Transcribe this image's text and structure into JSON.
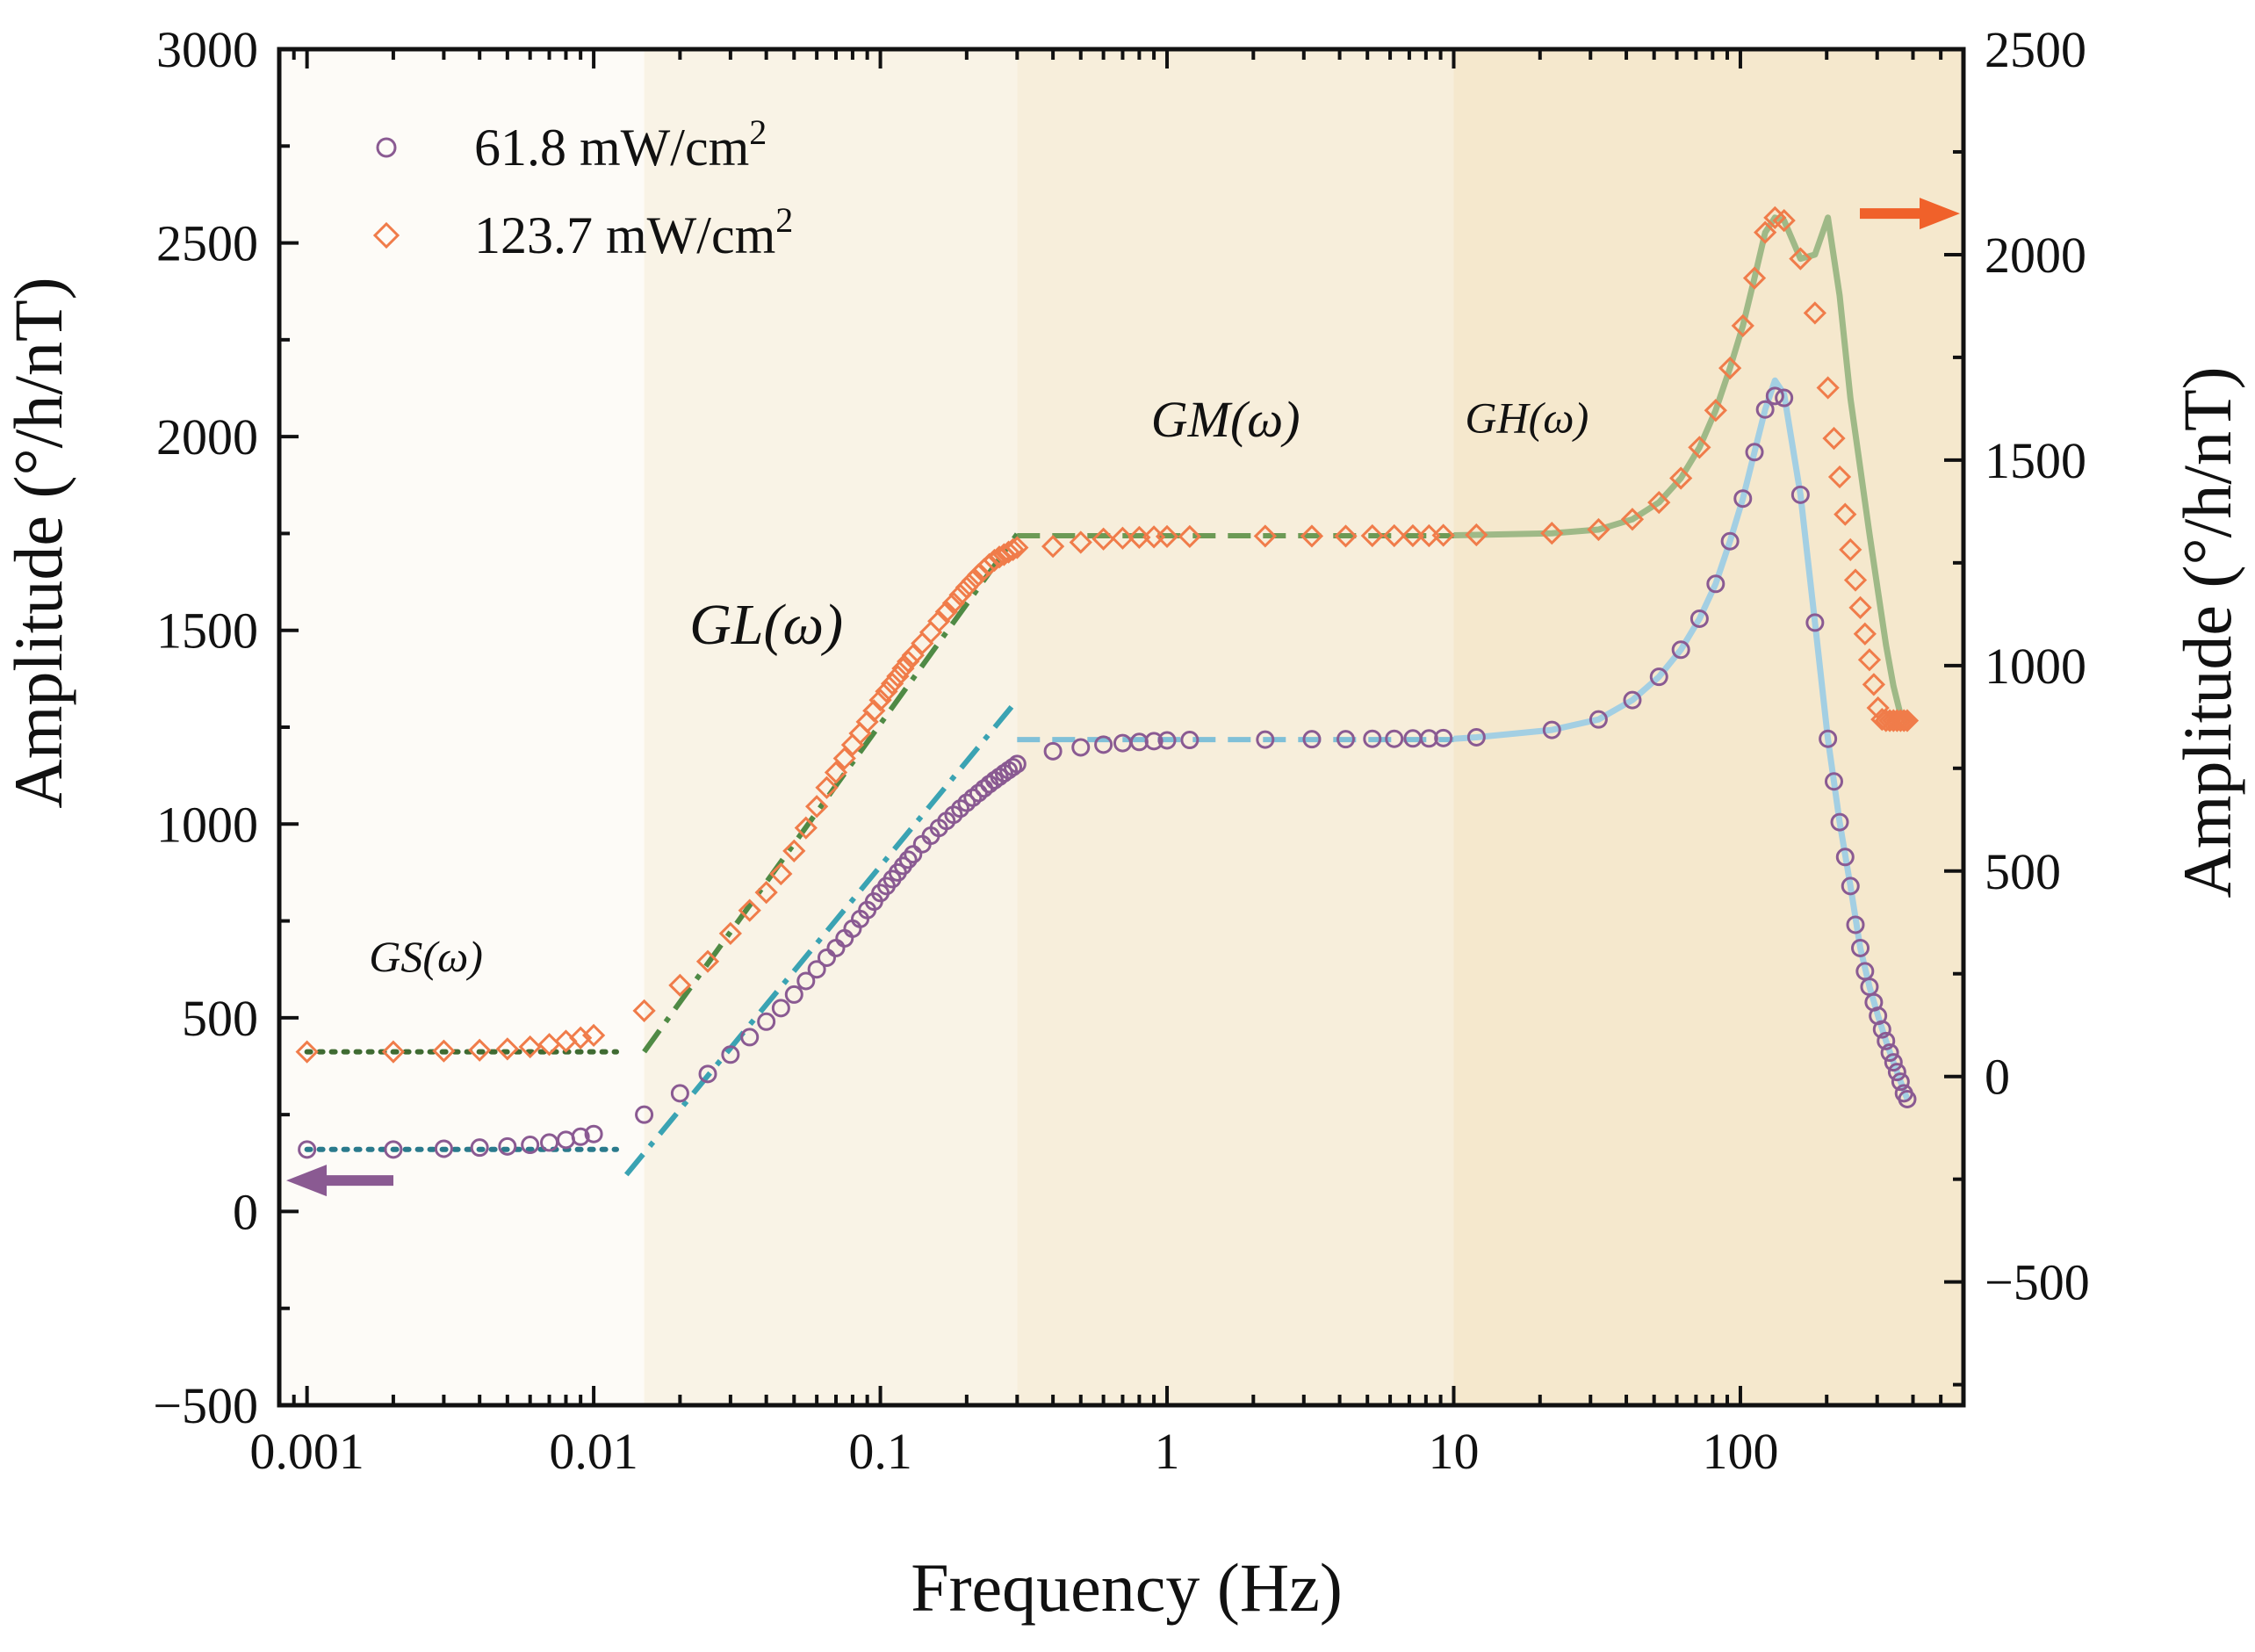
{
  "chart_data": {
    "type": "scatter",
    "title": "",
    "xlabel": "Frequency (Hz)",
    "ylabel_left": "Amplitude (°/h/nT)",
    "ylabel_right": "Amplitude (°/h/nT)",
    "xscale": "log",
    "xlim": [
      0.0008,
      600
    ],
    "ylim_left": [
      -500,
      3000
    ],
    "ylim_right": [
      -800,
      2500
    ],
    "x_ticks": [
      {
        "value": 0.001,
        "label": "0.001"
      },
      {
        "value": 0.01,
        "label": "0.01"
      },
      {
        "value": 0.1,
        "label": "0.1"
      },
      {
        "value": 1,
        "label": "1"
      },
      {
        "value": 10,
        "label": "10"
      },
      {
        "value": 100,
        "label": "100"
      }
    ],
    "y_ticks_left": [
      {
        "value": -500,
        "label": "−500"
      },
      {
        "value": 0,
        "label": "0"
      },
      {
        "value": 500,
        "label": "500"
      },
      {
        "value": 1000,
        "label": "1000"
      },
      {
        "value": 1500,
        "label": "1500"
      },
      {
        "value": 2000,
        "label": "2000"
      },
      {
        "value": 2500,
        "label": "2500"
      },
      {
        "value": 3000,
        "label": "3000"
      }
    ],
    "y_ticks_right": [
      {
        "value": -500,
        "label": "−500"
      },
      {
        "value": 0,
        "label": "0"
      },
      {
        "value": 500,
        "label": "500"
      },
      {
        "value": 1000,
        "label": "1000"
      },
      {
        "value": 1500,
        "label": "1500"
      },
      {
        "value": 2000,
        "label": "2000"
      },
      {
        "value": 2500,
        "label": "2500"
      }
    ],
    "regions": [
      {
        "name": "GS",
        "label": "GS(ω)",
        "x_from": 0.0008,
        "x_to": 0.015,
        "color": "#fdfbf7"
      },
      {
        "name": "GL",
        "label": "GL(ω)",
        "x_from": 0.015,
        "x_to": 0.3,
        "color": "#f9f3e6"
      },
      {
        "name": "GM",
        "label": "GM(ω)",
        "x_from": 0.3,
        "x_to": 10,
        "color": "#f7eedb"
      },
      {
        "name": "GH",
        "label": "GH(ω)",
        "x_from": 10,
        "x_to": 600,
        "color": "#f5e8cd"
      }
    ],
    "legend": {
      "placement": "top-left",
      "entries": [
        {
          "series": "p61",
          "marker": "circle",
          "label": "61.8 mW/cm",
          "sup": "2"
        },
        {
          "series": "p123",
          "marker": "diamond",
          "label": "123.7 mW/cm",
          "sup": "2"
        }
      ]
    },
    "series": [
      {
        "name": "61.8 mW/cm2",
        "id": "p61",
        "axis": "left",
        "marker": "circle",
        "color": "#8a5a92",
        "x": [
          0.001,
          0.002,
          0.003,
          0.004,
          0.005,
          0.006,
          0.007,
          0.008,
          0.009,
          0.01,
          0.015,
          0.02,
          0.025,
          0.03,
          0.035,
          0.04,
          0.045,
          0.05,
          0.055,
          0.06,
          0.065,
          0.07,
          0.075,
          0.08,
          0.085,
          0.09,
          0.095,
          0.1,
          0.105,
          0.11,
          0.115,
          0.12,
          0.125,
          0.13,
          0.14,
          0.15,
          0.16,
          0.17,
          0.18,
          0.19,
          0.2,
          0.21,
          0.22,
          0.23,
          0.24,
          0.25,
          0.26,
          0.27,
          0.28,
          0.29,
          0.3,
          0.4,
          0.5,
          0.6,
          0.7,
          0.8,
          0.9,
          1,
          1.2,
          2.2,
          3.2,
          4.2,
          5.2,
          6.2,
          7.2,
          8.2,
          9.2,
          12,
          22,
          32,
          42,
          52,
          62,
          72,
          82,
          92,
          102,
          112,
          122,
          132,
          142,
          162,
          182,
          202,
          212,
          222,
          232,
          242,
          252,
          262,
          272,
          282,
          292,
          302,
          312,
          322,
          332,
          342,
          352,
          362,
          372,
          382
        ],
        "values": [
          160,
          160,
          162,
          165,
          168,
          172,
          178,
          185,
          193,
          200,
          250,
          305,
          355,
          405,
          450,
          490,
          525,
          560,
          595,
          625,
          655,
          680,
          705,
          730,
          755,
          778,
          800,
          822,
          840,
          858,
          875,
          892,
          908,
          922,
          948,
          970,
          990,
          1008,
          1024,
          1040,
          1055,
          1068,
          1080,
          1092,
          1103,
          1113,
          1122,
          1131,
          1139,
          1147,
          1155,
          1188,
          1198,
          1205,
          1209,
          1212,
          1214,
          1216,
          1217,
          1218,
          1219,
          1219,
          1220,
          1220,
          1221,
          1221,
          1222,
          1224,
          1243,
          1270,
          1320,
          1380,
          1450,
          1530,
          1620,
          1730,
          1840,
          1960,
          2070,
          2105,
          2100,
          1850,
          1520,
          1220,
          1110,
          1005,
          915,
          840,
          740,
          680,
          620,
          580,
          540,
          505,
          470,
          440,
          410,
          385,
          360,
          335,
          305,
          290
        ]
      },
      {
        "name": "123.7 mW/cm2",
        "id": "p123",
        "axis": "right",
        "marker": "diamond",
        "color": "#f07c4a",
        "x": [
          0.001,
          0.002,
          0.003,
          0.004,
          0.005,
          0.006,
          0.007,
          0.008,
          0.009,
          0.01,
          0.015,
          0.02,
          0.025,
          0.03,
          0.035,
          0.04,
          0.045,
          0.05,
          0.055,
          0.06,
          0.065,
          0.07,
          0.075,
          0.08,
          0.085,
          0.09,
          0.095,
          0.1,
          0.105,
          0.11,
          0.115,
          0.12,
          0.125,
          0.13,
          0.14,
          0.15,
          0.16,
          0.17,
          0.18,
          0.19,
          0.2,
          0.21,
          0.22,
          0.23,
          0.24,
          0.25,
          0.26,
          0.27,
          0.28,
          0.29,
          0.3,
          0.4,
          0.5,
          0.6,
          0.7,
          0.8,
          0.9,
          1,
          1.2,
          2.2,
          3.2,
          4.2,
          5.2,
          6.2,
          7.2,
          8.2,
          9.2,
          12,
          22,
          32,
          42,
          52,
          62,
          72,
          82,
          92,
          102,
          112,
          122,
          132,
          142,
          162,
          182,
          202,
          212,
          222,
          232,
          242,
          252,
          262,
          272,
          282,
          292,
          302,
          312,
          322,
          332,
          342,
          352,
          362,
          372,
          382
        ],
        "values": [
          60,
          60,
          62,
          64,
          67,
          72,
          78,
          86,
          94,
          100,
          160,
          222,
          280,
          348,
          404,
          448,
          493,
          549,
          605,
          657,
          703,
          740,
          774,
          807,
          835,
          863,
          890,
          916,
          937,
          956,
          974,
          993,
          1010,
          1025,
          1054,
          1081,
          1108,
          1131,
          1152,
          1172,
          1190,
          1206,
          1221,
          1234,
          1246,
          1256,
          1264,
          1270,
          1276,
          1282,
          1287,
          1290,
          1300,
          1308,
          1310,
          1312,
          1313,
          1314,
          1314,
          1315,
          1315,
          1315,
          1316,
          1316,
          1316,
          1316,
          1317,
          1318,
          1322,
          1331,
          1356,
          1397,
          1456,
          1531,
          1621,
          1724,
          1827,
          1943,
          2054,
          2090,
          2083,
          1990,
          1858,
          1676,
          1553,
          1459,
          1368,
          1282,
          1208,
          1141,
          1077,
          1014,
          954,
          897,
          869,
          866,
          866,
          866,
          866,
          866,
          866,
          866
        ]
      }
    ],
    "fits": [
      {
        "series": "p61",
        "segment": "GS",
        "style": "dotted",
        "color": "#2a7a8c",
        "x": [
          0.001,
          0.012
        ],
        "values": [
          160,
          160
        ]
      },
      {
        "series": "p61",
        "segment": "GL",
        "style": "dashdot",
        "color": "#3aa3b3",
        "x": [
          0.013,
          0.3
        ],
        "values": [
          95,
          1320
        ]
      },
      {
        "series": "p61",
        "segment": "GM",
        "style": "dashed",
        "color": "#80c0d8",
        "x": [
          0.3,
          10
        ],
        "values": [
          1218,
          1218
        ]
      },
      {
        "series": "p61",
        "segment": "GH",
        "style": "solid",
        "color": "#a3cfe3",
        "x": [
          10,
          12,
          22,
          32,
          42,
          52,
          62,
          72,
          82,
          92,
          102,
          112,
          122,
          132,
          142,
          162,
          182,
          202,
          222,
          242,
          262,
          282,
          302,
          322,
          342,
          362,
          382
        ],
        "values": [
          1220,
          1224,
          1243,
          1270,
          1320,
          1380,
          1450,
          1530,
          1620,
          1730,
          1840,
          1960,
          2070,
          2145,
          2110,
          1850,
          1520,
          1220,
          1005,
          840,
          680,
          580,
          505,
          440,
          385,
          335,
          290
        ]
      },
      {
        "series": "p123",
        "segment": "GS",
        "style": "dotted",
        "color": "#3f6b32",
        "x": [
          0.001,
          0.012
        ],
        "values": [
          60,
          60
        ]
      },
      {
        "series": "p123",
        "segment": "GL",
        "style": "dashdot",
        "color": "#4f8a45",
        "x": [
          0.015,
          0.3
        ],
        "values": [
          60,
          1320
        ]
      },
      {
        "series": "p123",
        "segment": "GM",
        "style": "dashed",
        "color": "#6c9a55",
        "x": [
          0.3,
          10
        ],
        "values": [
          1316,
          1316
        ]
      },
      {
        "series": "p123",
        "segment": "GH",
        "style": "solid",
        "color": "#9fb987",
        "x": [
          10,
          12,
          22,
          32,
          42,
          52,
          62,
          72,
          82,
          92,
          102,
          112,
          122,
          132,
          142,
          162,
          182,
          202,
          222,
          242,
          262,
          282,
          302,
          322,
          342,
          362,
          382
        ],
        "values": [
          1317,
          1318,
          1322,
          1331,
          1356,
          1397,
          1456,
          1531,
          1621,
          1724,
          1827,
          1943,
          2054,
          2090,
          2083,
          1990,
          2000,
          2090,
          1900,
          1650,
          1480,
          1320,
          1180,
          1050,
          950,
          880,
          860
        ]
      }
    ],
    "arrows": [
      {
        "id": "left-axis-arrow",
        "points_to": "left",
        "color": "#8a5a92",
        "y": 80
      },
      {
        "id": "right-axis-arrow",
        "points_to": "right",
        "color": "#f0612a",
        "y": 2100
      }
    ]
  }
}
